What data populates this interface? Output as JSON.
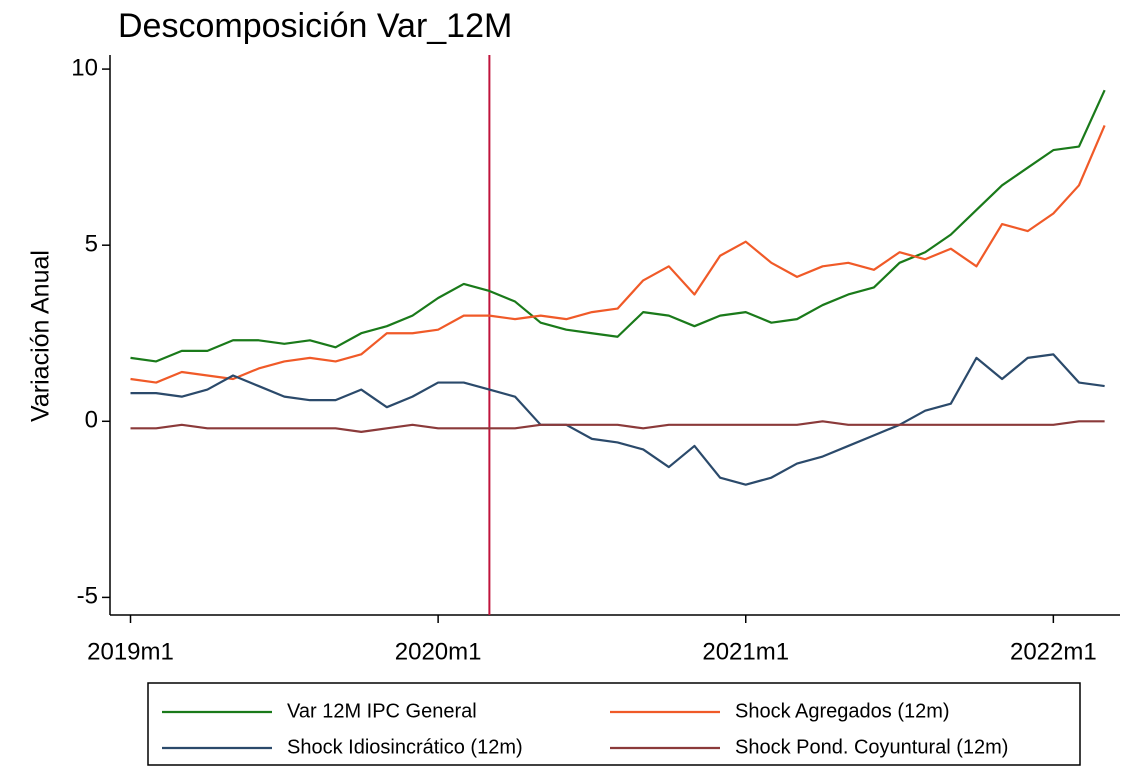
{
  "chart_data": {
    "type": "line",
    "title": "Descomposición Var_12M",
    "y_label": "Variación Anual",
    "x": [
      708,
      709,
      710,
      711,
      712,
      713,
      714,
      715,
      716,
      717,
      718,
      719,
      720,
      721,
      722,
      723,
      724,
      725,
      726,
      727,
      728,
      729,
      730,
      731,
      732,
      733,
      734,
      735,
      736,
      737,
      738,
      739,
      740,
      741,
      742,
      743,
      744,
      745,
      746
    ],
    "series": [
      {
        "name": "Var 12M IPC General",
        "color": "#1a7a1a",
        "values": [
          1.8,
          1.7,
          2.0,
          2.0,
          2.3,
          2.3,
          2.2,
          2.3,
          2.1,
          2.5,
          2.7,
          3.0,
          3.5,
          3.9,
          3.7,
          3.4,
          2.8,
          2.6,
          2.5,
          2.4,
          3.1,
          3.0,
          2.7,
          3.0,
          3.1,
          2.8,
          2.9,
          3.3,
          3.6,
          3.8,
          4.5,
          4.8,
          5.3,
          6.0,
          6.7,
          7.2,
          7.7,
          7.8,
          9.4
        ]
      },
      {
        "name": "Shock Agregados (12m)",
        "color": "#f05a28",
        "values": [
          1.2,
          1.1,
          1.4,
          1.3,
          1.2,
          1.5,
          1.7,
          1.8,
          1.7,
          1.9,
          2.5,
          2.5,
          2.6,
          3.0,
          3.0,
          2.9,
          3.0,
          2.9,
          3.1,
          3.2,
          4.0,
          4.4,
          3.6,
          4.7,
          5.1,
          4.5,
          4.1,
          4.4,
          4.5,
          4.3,
          4.8,
          4.6,
          4.9,
          4.4,
          5.6,
          5.4,
          5.9,
          6.7,
          8.4
        ]
      },
      {
        "name": "Shock Idiosincrático (12m)",
        "color": "#2b4a6b",
        "values": [
          0.8,
          0.8,
          0.7,
          0.9,
          1.3,
          1.0,
          0.7,
          0.6,
          0.6,
          0.9,
          0.4,
          0.7,
          1.1,
          1.1,
          0.9,
          0.7,
          -0.1,
          -0.1,
          -0.5,
          -0.6,
          -0.8,
          -1.3,
          -0.7,
          -1.6,
          -1.8,
          -1.6,
          -1.2,
          -1.0,
          -0.7,
          -0.4,
          -0.1,
          0.3,
          0.5,
          1.8,
          1.2,
          1.8,
          1.9,
          1.1,
          1.0
        ]
      },
      {
        "name": "Shock Pond. Coyuntural (12m)",
        "color": "#8b3a3a",
        "values": [
          -0.2,
          -0.2,
          -0.1,
          -0.2,
          -0.2,
          -0.2,
          -0.2,
          -0.2,
          -0.2,
          -0.3,
          -0.2,
          -0.1,
          -0.2,
          -0.2,
          -0.2,
          -0.2,
          -0.1,
          -0.1,
          -0.1,
          -0.1,
          -0.2,
          -0.1,
          -0.1,
          -0.1,
          -0.1,
          -0.1,
          -0.1,
          0.0,
          -0.1,
          -0.1,
          -0.1,
          -0.1,
          -0.1,
          -0.1,
          -0.1,
          -0.1,
          -0.1,
          0.0,
          0.0
        ]
      }
    ],
    "xlim": [
      707.2,
      746.6
    ],
    "xticks": [
      {
        "value": 708,
        "label": "2019m1"
      },
      {
        "value": 720,
        "label": "2020m1"
      },
      {
        "value": 732,
        "label": "2021m1"
      },
      {
        "value": 744,
        "label": "2022m1"
      }
    ],
    "ylim": [
      -5.5,
      10.4
    ],
    "yticks": [
      -5,
      0,
      5,
      10
    ],
    "vline": {
      "x": 722,
      "color": "#c0143c"
    },
    "grid": false
  }
}
